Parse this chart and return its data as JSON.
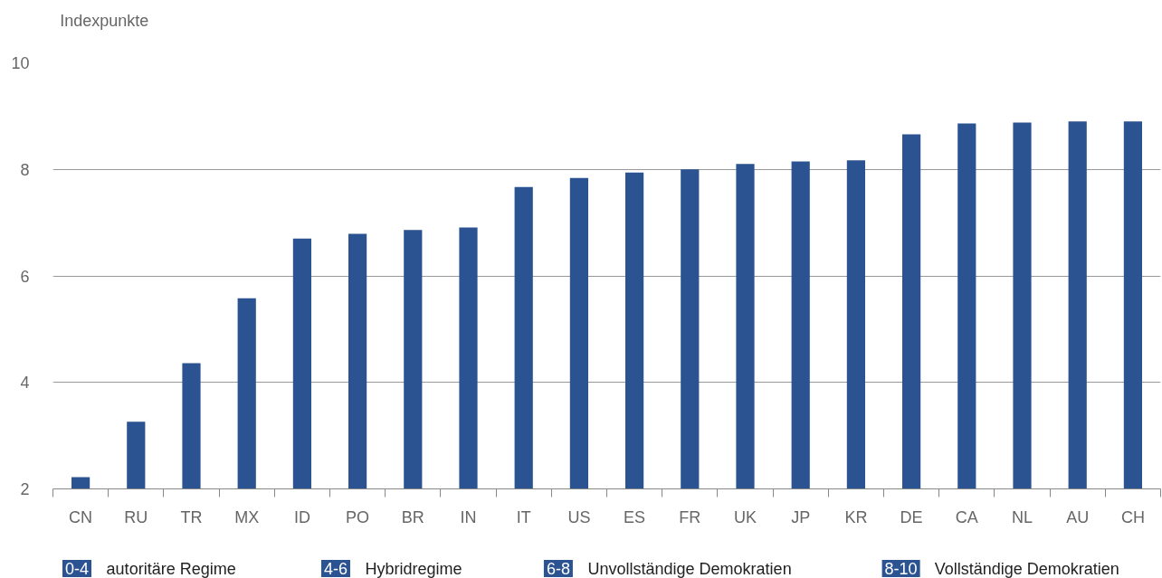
{
  "chart_data": {
    "type": "bar",
    "ylabel": "Indexpunkte",
    "categories": [
      "CN",
      "RU",
      "TR",
      "MX",
      "ID",
      "PO",
      "BR",
      "IN",
      "IT",
      "US",
      "ES",
      "FR",
      "UK",
      "JP",
      "KR",
      "DE",
      "CA",
      "NL",
      "AU",
      "CH"
    ],
    "values": [
      2.22,
      3.26,
      4.36,
      5.58,
      6.7,
      6.79,
      6.86,
      6.91,
      7.67,
      7.84,
      7.94,
      8.0,
      8.1,
      8.15,
      8.17,
      8.66,
      8.86,
      8.88,
      8.9,
      8.9
    ],
    "color": "#2b5291",
    "ylim": [
      2,
      10
    ],
    "yticks": [
      2,
      4,
      6,
      8,
      10
    ],
    "grid": "y",
    "annotations": [
      "0-4",
      "autoritäre Regime",
      "4-6",
      "Hybridregime",
      "6-8",
      "Unvollständige Demokratien",
      "8-10",
      "Vollständige Demokratien"
    ]
  }
}
